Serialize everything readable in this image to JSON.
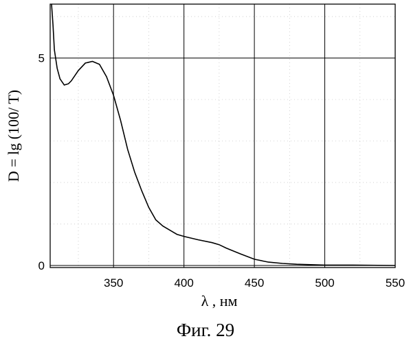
{
  "chart_data": {
    "type": "line",
    "xlabel": "λ , нм",
    "ylabel": "D = lg (100/ T)",
    "caption": "Фиг. 29",
    "xlim": [
      305,
      550
    ],
    "ylim": [
      -0.05,
      6.3
    ],
    "x_ticks": [
      350,
      400,
      450,
      500,
      550
    ],
    "y_ticks": [
      0,
      5
    ],
    "vertical_gridlines": [
      350,
      400,
      450,
      500
    ],
    "horizontal_gridlines": [
      5
    ],
    "grid_major": true,
    "grid_minor": true,
    "series": [
      {
        "x": [
          306,
          307,
          308,
          310,
          312,
          315,
          318,
          320,
          325,
          330,
          335,
          340,
          345,
          350,
          355,
          360,
          365,
          370,
          375,
          380,
          385,
          390,
          395,
          400,
          410,
          420,
          425,
          430,
          440,
          450,
          460,
          470,
          480,
          490,
          500,
          520,
          550
        ],
        "y": [
          6.3,
          5.8,
          5.2,
          4.75,
          4.5,
          4.35,
          4.38,
          4.45,
          4.7,
          4.88,
          4.92,
          4.85,
          4.55,
          4.1,
          3.5,
          2.8,
          2.25,
          1.8,
          1.4,
          1.1,
          0.95,
          0.85,
          0.75,
          0.7,
          0.62,
          0.55,
          0.5,
          0.42,
          0.28,
          0.15,
          0.08,
          0.05,
          0.03,
          0.02,
          0.01,
          0.01,
          0.0
        ]
      }
    ]
  }
}
